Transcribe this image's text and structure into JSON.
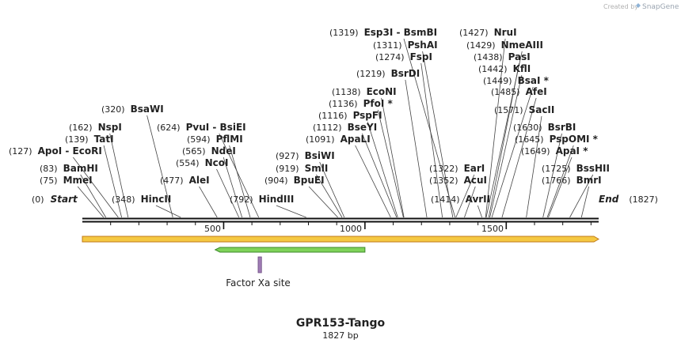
{
  "credit": {
    "text": "Created by",
    "brand": "SnapGene",
    "icon": "snapgene-logo-icon"
  },
  "sequence": {
    "length": 1827,
    "start_label": "Start",
    "end_label": "End",
    "start_pos": "(0)",
    "end_pos": "(1827)"
  },
  "title": "GPR153-Tango",
  "subtitle": "1827 bp",
  "ticks": [
    "500",
    "1000",
    "1500"
  ],
  "sites": [
    {
      "pos": "(75)",
      "name": "MmeI",
      "star": false
    },
    {
      "pos": "(83)",
      "name": "BamHI",
      "star": false
    },
    {
      "pos": "(127)",
      "name": "ApoI",
      "name2": "EcoRI",
      "star": false
    },
    {
      "pos": "(139)",
      "name": "TatI",
      "star": false
    },
    {
      "pos": "(162)",
      "name": "NspI",
      "star": false
    },
    {
      "pos": "(320)",
      "name": "BsaWI",
      "star": false
    },
    {
      "pos": "(348)",
      "name": "HincII",
      "star": false
    },
    {
      "pos": "(477)",
      "name": "AleI",
      "star": false
    },
    {
      "pos": "(554)",
      "name": "NcoI",
      "star": false
    },
    {
      "pos": "(565)",
      "name": "NdeI",
      "star": false
    },
    {
      "pos": "(594)",
      "name": "PflMI",
      "star": false
    },
    {
      "pos": "(624)",
      "name": "PvuI",
      "name2": "BsiEI",
      "star": false
    },
    {
      "pos": "(792)",
      "name": "HindIII",
      "star": false
    },
    {
      "pos": "(904)",
      "name": "BpuEI",
      "star": false
    },
    {
      "pos": "(919)",
      "name": "SmlI",
      "star": false
    },
    {
      "pos": "(927)",
      "name": "BsiWI",
      "star": false
    },
    {
      "pos": "(1091)",
      "name": "ApaLI",
      "star": false
    },
    {
      "pos": "(1112)",
      "name": "BseYI",
      "star": false
    },
    {
      "pos": "(1116)",
      "name": "PspFI",
      "star": false
    },
    {
      "pos": "(1136)",
      "name": "PfoI",
      "star": true
    },
    {
      "pos": "(1138)",
      "name": "EcoNI",
      "star": false
    },
    {
      "pos": "(1219)",
      "name": "BsrDI",
      "star": false
    },
    {
      "pos": "(1274)",
      "name": "FspI",
      "star": false
    },
    {
      "pos": "(1311)",
      "name": "PshAI",
      "star": false
    },
    {
      "pos": "(1319)",
      "name": "Esp3I",
      "name2": "BsmBI",
      "star": false
    },
    {
      "pos": "(1322)",
      "name": "EarI",
      "star": false
    },
    {
      "pos": "(1352)",
      "name": "AcuI",
      "star": false
    },
    {
      "pos": "(1414)",
      "name": "AvrII",
      "star": false
    },
    {
      "pos": "(1427)",
      "name": "NruI",
      "star": false
    },
    {
      "pos": "(1429)",
      "name": "NmeAIII",
      "star": false
    },
    {
      "pos": "(1438)",
      "name": "PasI",
      "star": false
    },
    {
      "pos": "(1442)",
      "name": "KflI",
      "star": false
    },
    {
      "pos": "(1449)",
      "name": "BsaI",
      "star": true
    },
    {
      "pos": "(1485)",
      "name": "AfeI",
      "star": false
    },
    {
      "pos": "(1571)",
      "name": "SacII",
      "star": false
    },
    {
      "pos": "(1630)",
      "name": "BsrBI",
      "star": false
    },
    {
      "pos": "(1645)",
      "name": "PspOMI",
      "star": true
    },
    {
      "pos": "(1649)",
      "name": "ApaI",
      "star": true
    },
    {
      "pos": "(1725)",
      "name": "BssHII",
      "star": false
    },
    {
      "pos": "(1766)",
      "name": "BmrI",
      "star": false
    }
  ],
  "features": [
    {
      "name": "full-length",
      "start": 1,
      "end": 1827,
      "direction": "forward",
      "color": "#f5c842",
      "label": ""
    },
    {
      "name": "green-feature",
      "start": 470,
      "end": 1000,
      "direction": "reverse",
      "color": "#7fd35a",
      "label": ""
    },
    {
      "name": "Factor Xa site",
      "start": 622,
      "end": 634,
      "direction": "none",
      "color": "#a07cb5",
      "label": "Factor Xa site"
    }
  ],
  "colors": {
    "backbone": "#111111",
    "orf": "#f5c842",
    "feature": "#7fd35a",
    "factorxa": "#a07cb5",
    "leader": "#444444"
  }
}
